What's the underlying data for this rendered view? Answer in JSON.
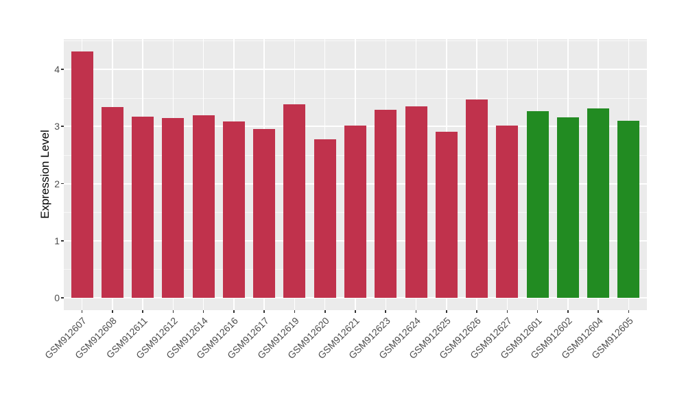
{
  "y_axis": {
    "title": "Expression Level",
    "tick_labels": [
      "0",
      "1",
      "2",
      "3",
      "4"
    ]
  },
  "chart_data": {
    "type": "bar",
    "title": "",
    "xlabel": "",
    "ylabel": "Expression Level",
    "categories": [
      "GSM912607",
      "GSM912608",
      "GSM912611",
      "GSM912612",
      "GSM912614",
      "GSM912616",
      "GSM912617",
      "GSM912619",
      "GSM912620",
      "GSM912621",
      "GSM912623",
      "GSM912624",
      "GSM912625",
      "GSM912626",
      "GSM912627",
      "GSM912601",
      "GSM912602",
      "GSM912604",
      "GSM912605"
    ],
    "values": [
      4.31,
      3.34,
      3.17,
      3.15,
      3.19,
      3.09,
      2.95,
      3.39,
      2.78,
      3.02,
      3.29,
      3.35,
      2.91,
      3.47,
      3.02,
      3.27,
      3.16,
      3.31,
      3.1
    ],
    "bar_colors": [
      "#C0324C",
      "#C0324C",
      "#C0324C",
      "#C0324C",
      "#C0324C",
      "#C0324C",
      "#C0324C",
      "#C0324C",
      "#C0324C",
      "#C0324C",
      "#C0324C",
      "#C0324C",
      "#C0324C",
      "#C0324C",
      "#C0324C",
      "#228B22",
      "#228B22",
      "#228B22",
      "#228B22"
    ],
    "group_colors": {
      "first_group": "#C0324C",
      "second_group": "#228B22"
    },
    "yticks": [
      0,
      1,
      2,
      3,
      4
    ],
    "yticks_minor": [
      0.5,
      1.5,
      2.5,
      3.5,
      4.5
    ],
    "ylim": [
      0,
      4.53
    ],
    "legend": "none",
    "grid": "white major+minor horizontal lines and white vertical line per category on gray panel",
    "panel_background": "#EBEBEB"
  }
}
